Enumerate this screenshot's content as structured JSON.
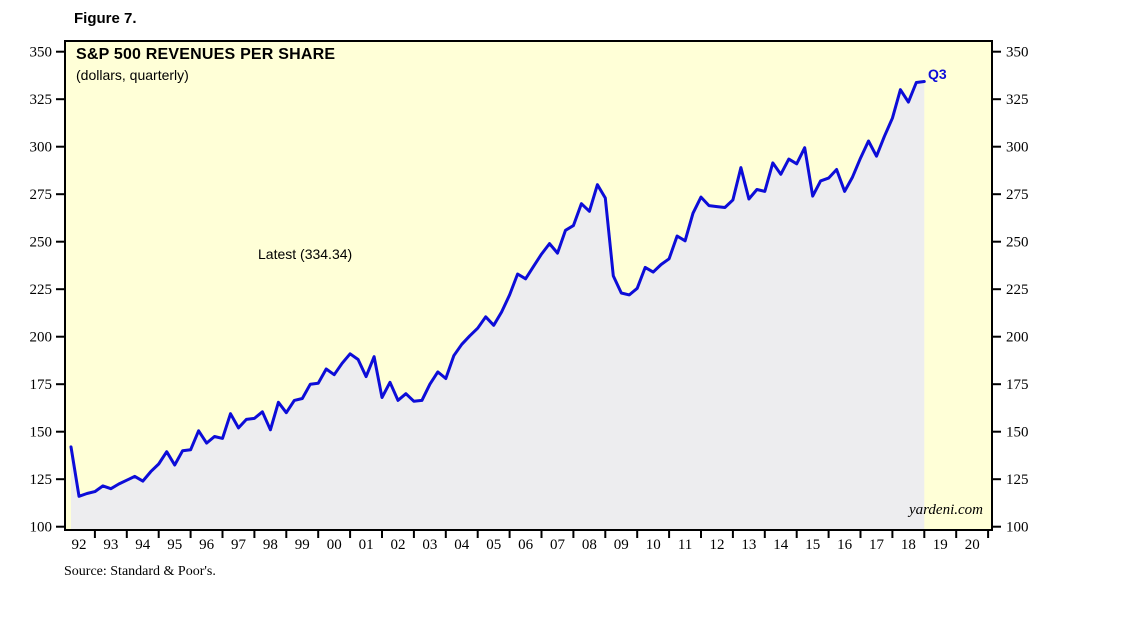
{
  "figure_label": "Figure 7.",
  "chart": {
    "title": "S&P 500 REVENUES PER SHARE",
    "subtitle": "(dollars, quarterly)",
    "annotation": "Latest (334.34)",
    "end_label": "Q3",
    "watermark": "yardeni.com",
    "source": "Source: Standard & Poor's."
  },
  "chart_data": {
    "type": "line",
    "title": "S&P 500 REVENUES PER SHARE",
    "subtitle": "(dollars, quarterly)",
    "series_name": "S&P 500 revenues per share (dollars, quarterly)",
    "start_quarter": "1991-Q4",
    "end_quarter": "2018-Q3",
    "latest_value": 334.34,
    "ylim": [
      100,
      350
    ],
    "y_ticks": [
      100,
      125,
      150,
      175,
      200,
      225,
      250,
      275,
      300,
      325,
      350
    ],
    "x_tick_labels": [
      "92",
      "93",
      "94",
      "95",
      "96",
      "97",
      "98",
      "99",
      "00",
      "01",
      "02",
      "03",
      "04",
      "05",
      "06",
      "07",
      "08",
      "09",
      "10",
      "11",
      "12",
      "13",
      "14",
      "15",
      "16",
      "17",
      "18",
      "19",
      "20"
    ],
    "grid": false,
    "legend_position": "none",
    "colors": {
      "line": "#0d0dd8",
      "plot_bg": "#ffffd7",
      "area_fill": "#ededef",
      "frame": "#000000",
      "end_label": "#0d0dd8"
    },
    "values": [
      142.0,
      116.0,
      117.5,
      118.5,
      121.5,
      120.0,
      122.5,
      124.5,
      126.5,
      124.0,
      129.0,
      133.0,
      139.5,
      132.5,
      140.0,
      140.5,
      150.5,
      144.0,
      147.5,
      146.5,
      159.5,
      152.0,
      156.5,
      157.0,
      160.5,
      151.0,
      165.5,
      160.0,
      166.5,
      167.5,
      175.0,
      175.5,
      183.0,
      180.0,
      186.0,
      191.0,
      188.0,
      179.0,
      189.5,
      168.0,
      176.0,
      166.5,
      170.0,
      166.0,
      166.5,
      175.0,
      181.5,
      178.0,
      190.0,
      196.0,
      200.5,
      204.5,
      210.5,
      206.0,
      213.0,
      222.0,
      233.0,
      230.5,
      237.0,
      243.5,
      249.0,
      244.0,
      256.0,
      258.5,
      270.0,
      266.0,
      280.0,
      273.0,
      232.0,
      223.0,
      222.0,
      225.5,
      236.5,
      234.0,
      238.0,
      241.0,
      253.0,
      250.5,
      265.0,
      273.5,
      269.0,
      268.5,
      268.0,
      272.0,
      289.0,
      272.5,
      277.5,
      276.5,
      291.5,
      285.5,
      293.5,
      291.0,
      299.5,
      274.0,
      282.0,
      283.5,
      288.0,
      276.5,
      284.0,
      294.0,
      303.0,
      295.0,
      305.5,
      315.0,
      330.0,
      323.5,
      333.8,
      334.34
    ]
  }
}
